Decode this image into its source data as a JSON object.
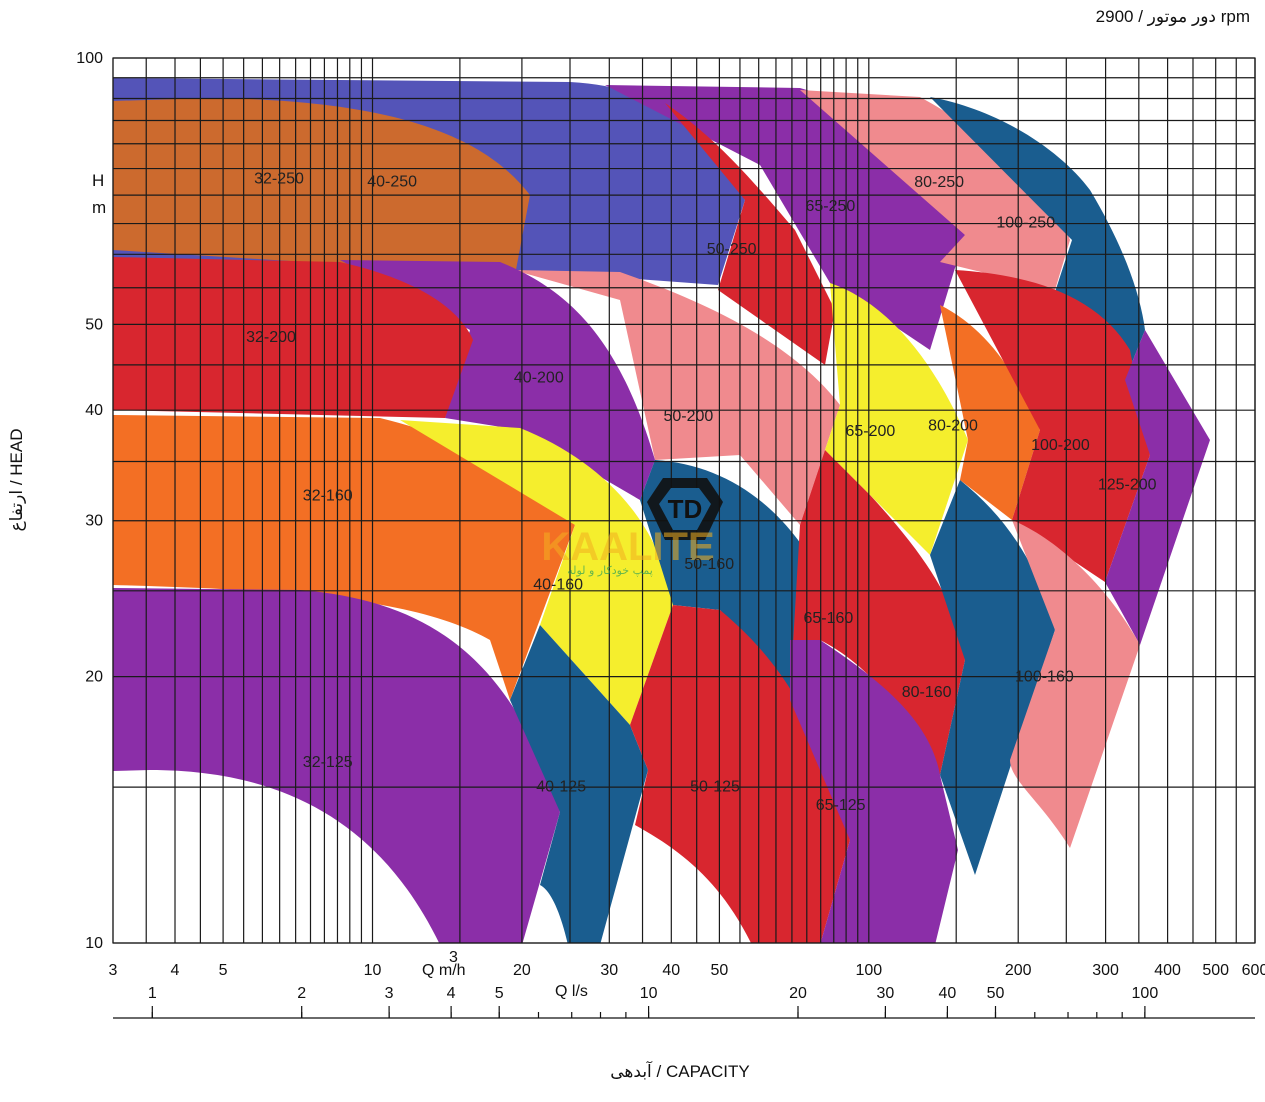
{
  "header": {
    "speed_label": "دور موتور / 2900 rpm"
  },
  "axes": {
    "y_title": "ارتفاع / HEAD",
    "y_unit_h": "H",
    "y_unit_m": "m",
    "x_title": "آبدهی / CAPACITY",
    "x_q_m3h_label": "Q m/h",
    "x_q_m3h_superscript": "3",
    "x_q_ls_label": "Q l/s"
  },
  "watermark": {
    "text": "KAALITE",
    "subtext": "پمپ خودکار و لوله"
  },
  "colors": {
    "grid": "#1a1a1a",
    "orange_brown": "#cc6a2e",
    "blue_violet": "#5454b8",
    "red": "#d8262f",
    "purple": "#8b2ea8",
    "salmon": "#f08a8e",
    "orange": "#f36f24",
    "yellow": "#f5ee2d",
    "teal_blue": "#1a5d8f"
  },
  "chart_data": {
    "type": "area",
    "title": "",
    "xscale": "log",
    "yscale": "log",
    "xlabel": "آبدهی / CAPACITY",
    "ylabel": "ارتفاع / HEAD",
    "xlim_m3h": [
      3,
      600
    ],
    "ylim_m": [
      10,
      100
    ],
    "x_ticks_m3h": [
      3,
      4,
      5,
      10,
      20,
      30,
      40,
      50,
      100,
      200,
      300,
      400,
      500,
      600
    ],
    "x_ticks_ls": [
      1,
      2,
      3,
      4,
      5,
      10,
      20,
      30,
      40,
      50,
      100
    ],
    "y_ticks": [
      10,
      20,
      30,
      40,
      50,
      100
    ],
    "grid": true,
    "zones": [
      {
        "name": "32-250",
        "color": "orange_brown",
        "q_m3h": [
          3,
          14
        ],
        "h_m": [
          56,
          93
        ]
      },
      {
        "name": "40-250",
        "color": "blue_violet",
        "q_m3h": [
          3,
          40
        ],
        "h_m": [
          54,
          95
        ]
      },
      {
        "name": "50-250",
        "color": "red",
        "q_m3h": [
          35,
          80
        ],
        "h_m": [
          44,
          82
        ]
      },
      {
        "name": "65-250",
        "color": "purple",
        "q_m3h": [
          50,
          140
        ],
        "h_m": [
          48,
          94
        ]
      },
      {
        "name": "80-250",
        "color": "salmon",
        "q_m3h": [
          80,
          240
        ],
        "h_m": [
          55,
          93
        ]
      },
      {
        "name": "100-250",
        "color": "teal_blue",
        "q_m3h": [
          130,
          330
        ],
        "h_m": [
          45,
          92
        ]
      },
      {
        "name": "32-200",
        "color": "red",
        "q_m3h": [
          3,
          13
        ],
        "h_m": [
          40,
          57
        ]
      },
      {
        "name": "40-200",
        "color": "purple",
        "q_m3h": [
          13,
          36
        ],
        "h_m": [
          33,
          56
        ]
      },
      {
        "name": "50-200",
        "color": "salmon",
        "q_m3h": [
          25,
          75
        ],
        "h_m": [
          28,
          54
        ]
      },
      {
        "name": "65-200",
        "color": "yellow",
        "q_m3h": [
          70,
          145
        ],
        "h_m": [
          28,
          50
        ]
      },
      {
        "name": "80-200",
        "color": "orange",
        "q_m3h": [
          115,
          190
        ],
        "h_m": [
          30,
          48
        ]
      },
      {
        "name": "100-200",
        "color": "red",
        "q_m3h": [
          160,
          370
        ],
        "h_m": [
          25,
          52
        ]
      },
      {
        "name": "125-200",
        "color": "purple",
        "q_m3h": [
          220,
          500
        ],
        "h_m": [
          23,
          46
        ]
      },
      {
        "name": "32-160",
        "color": "orange",
        "q_m3h": [
          3,
          22
        ],
        "h_m": [
          25,
          40
        ]
      },
      {
        "name": "40-160",
        "color": "yellow",
        "q_m3h": [
          14,
          40
        ],
        "h_m": [
          17,
          37
        ]
      },
      {
        "name": "50-160",
        "color": "teal_blue",
        "q_m3h": [
          35,
          65
        ],
        "h_m": [
          20,
          35
        ]
      },
      {
        "name": "65-160",
        "color": "red",
        "q_m3h": [
          55,
          125
        ],
        "h_m": [
          16,
          33
        ]
      },
      {
        "name": "80-160",
        "color": "teal_blue",
        "q_m3h": [
          95,
          180
        ],
        "h_m": [
          12,
          30
        ]
      },
      {
        "name": "100-160",
        "color": "salmon",
        "q_m3h": [
          150,
          340
        ],
        "h_m": [
          13,
          30
        ]
      },
      {
        "name": "32-125",
        "color": "purple",
        "q_m3h": [
          3,
          22
        ],
        "h_m": [
          10,
          25
        ]
      },
      {
        "name": "40-125",
        "color": "teal_blue",
        "q_m3h": [
          18,
          32
        ],
        "h_m": [
          10,
          22
        ]
      },
      {
        "name": "50-125",
        "color": "red",
        "q_m3h": [
          32,
          75
        ],
        "h_m": [
          10,
          22
        ]
      },
      {
        "name": "65-125",
        "color": "purple",
        "q_m3h": [
          55,
          140
        ],
        "h_m": [
          10,
          20
        ]
      }
    ]
  }
}
